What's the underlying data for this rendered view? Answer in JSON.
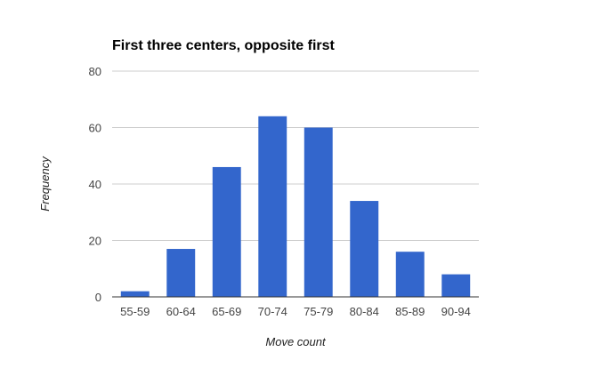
{
  "chart_data": {
    "type": "bar",
    "title": "First three centers, opposite first",
    "xlabel": "Move count",
    "ylabel": "Frequency",
    "categories": [
      "55-59",
      "60-64",
      "65-69",
      "70-74",
      "75-79",
      "80-84",
      "85-89",
      "90-94"
    ],
    "values": [
      2,
      17,
      46,
      64,
      60,
      34,
      16,
      8
    ],
    "ylim": [
      0,
      80
    ],
    "yticks": [
      0,
      20,
      40,
      60,
      80
    ],
    "grid": true,
    "legend": "none",
    "bar_color": "#3366cc"
  }
}
